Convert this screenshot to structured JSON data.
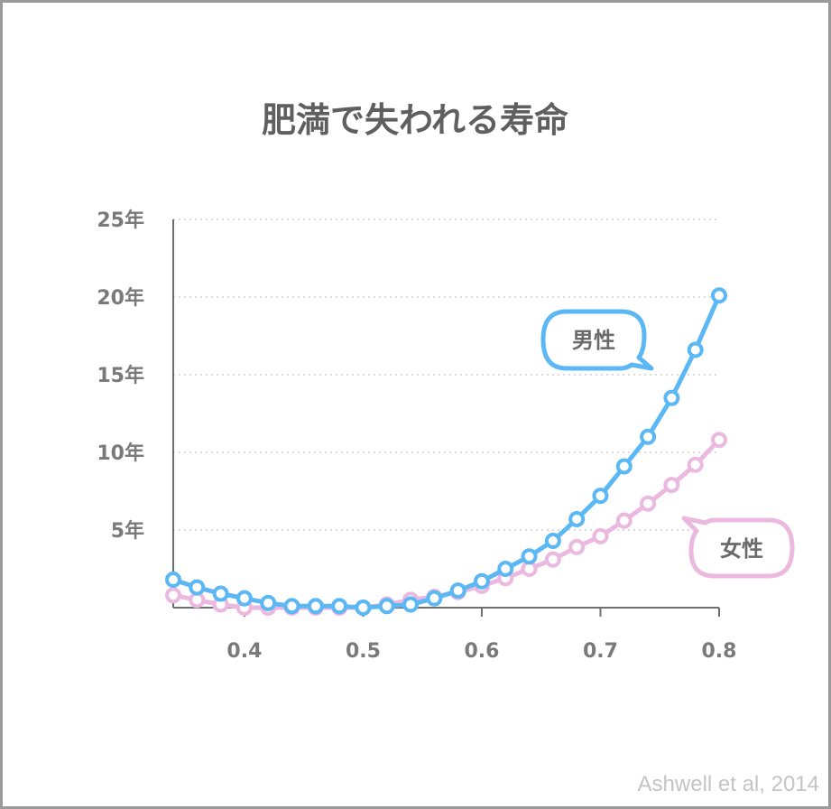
{
  "chart_data": {
    "type": "line",
    "title": "肥満で失われる寿命",
    "xlabel": "",
    "ylabel": "",
    "xlim": [
      0.34,
      0.8
    ],
    "ylim": [
      0,
      25
    ],
    "x_ticks": [
      {
        "value": 0.4,
        "label": "0.4"
      },
      {
        "value": 0.5,
        "label": "0.5"
      },
      {
        "value": 0.6,
        "label": "0.6"
      },
      {
        "value": 0.7,
        "label": "0.7"
      },
      {
        "value": 0.8,
        "label": "0.8"
      }
    ],
    "y_ticks": [
      {
        "value": 5,
        "label": "5年"
      },
      {
        "value": 10,
        "label": "10年"
      },
      {
        "value": 15,
        "label": "15年"
      },
      {
        "value": 20,
        "label": "20年"
      },
      {
        "value": 25,
        "label": "25年"
      }
    ],
    "grid": "horizontal-dotted",
    "x": [
      0.34,
      0.36,
      0.38,
      0.4,
      0.42,
      0.44,
      0.46,
      0.48,
      0.5,
      0.52,
      0.54,
      0.56,
      0.58,
      0.6,
      0.62,
      0.64,
      0.66,
      0.68,
      0.7,
      0.72,
      0.74,
      0.76,
      0.78,
      0.8
    ],
    "series": [
      {
        "name": "男性",
        "color": "#5bb8f5",
        "values": [
          1.8,
          1.3,
          0.9,
          0.6,
          0.3,
          0.1,
          0.1,
          0.1,
          0.0,
          0.1,
          0.2,
          0.6,
          1.1,
          1.7,
          2.5,
          3.3,
          4.3,
          5.7,
          7.2,
          9.1,
          11.0,
          13.5,
          16.6,
          20.1
        ]
      },
      {
        "name": "女性",
        "color": "#ebb9df",
        "values": [
          0.8,
          0.5,
          0.2,
          0.0,
          0.0,
          0.0,
          0.0,
          0.0,
          0.0,
          0.2,
          0.5,
          0.7,
          1.0,
          1.4,
          1.9,
          2.5,
          3.1,
          3.9,
          4.6,
          5.6,
          6.7,
          7.9,
          9.2,
          10.8
        ]
      }
    ]
  },
  "source": "Ashwell et al, 2014"
}
